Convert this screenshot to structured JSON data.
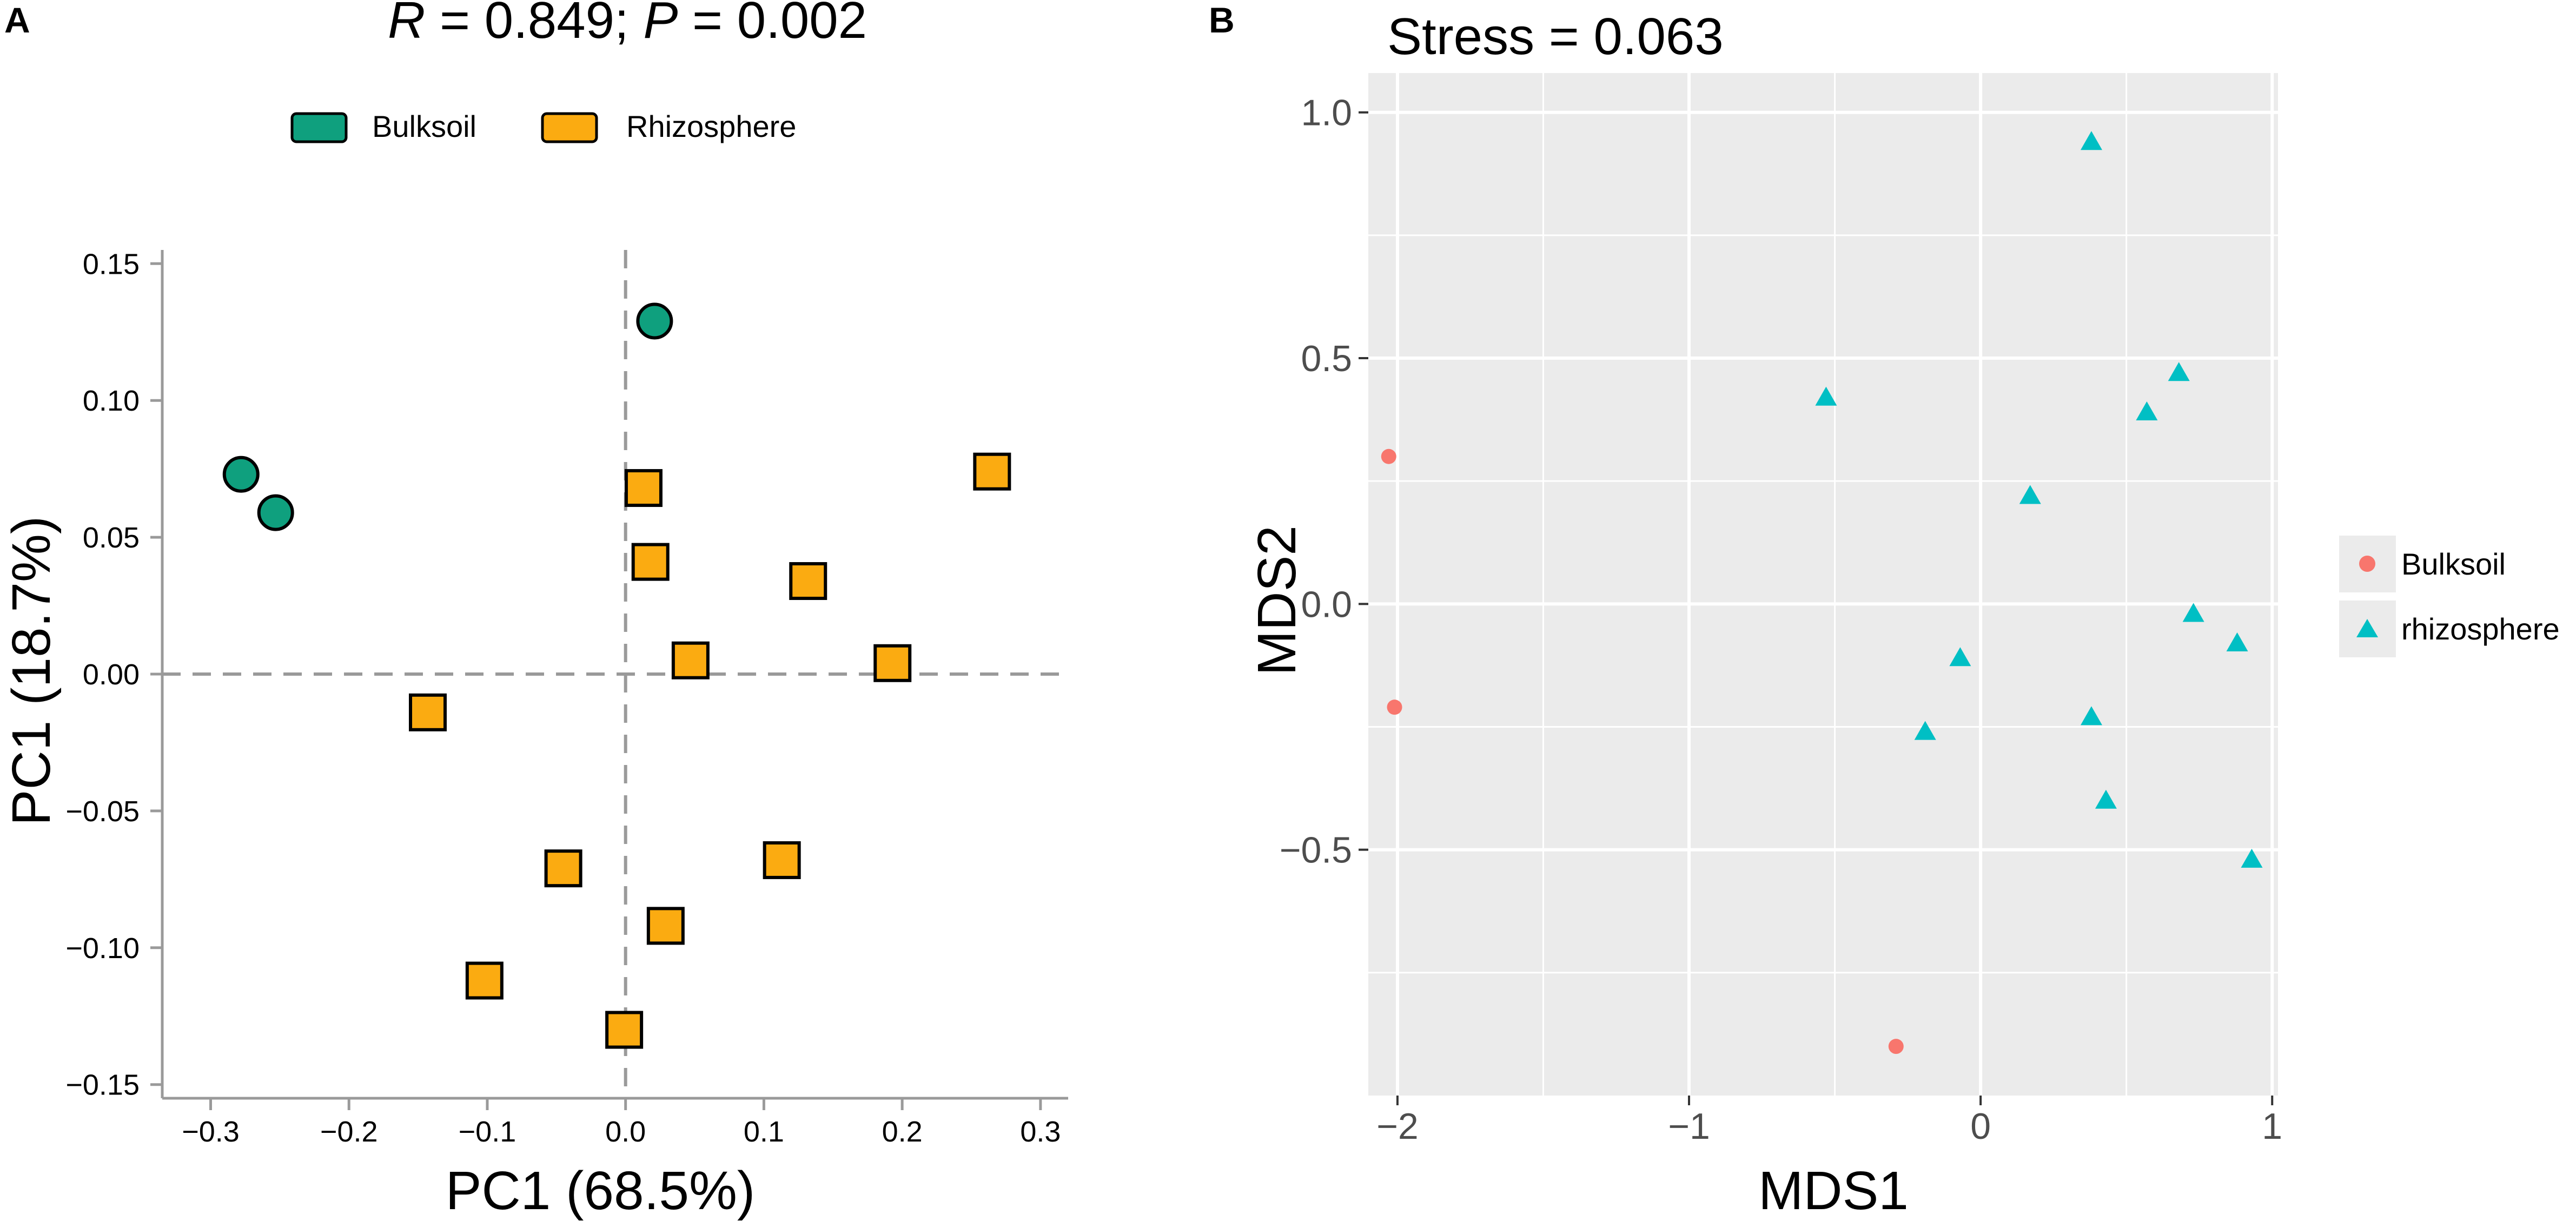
{
  "chart_data": [
    {
      "panel_label": "A",
      "type": "scatter",
      "title_parts": {
        "r_symbol": "R",
        "r_rest": " = 0.849; ",
        "p_symbol": "P",
        "p_rest": " = 0.002"
      },
      "xlabel": "PC1 (68.5%)",
      "ylabel": "PC1 (18.7%)",
      "xlim": [
        -0.335,
        0.32
      ],
      "ylim": [
        -0.155,
        0.155
      ],
      "xticks": [
        -0.3,
        -0.2,
        -0.1,
        0.0,
        0.1,
        0.2,
        0.3
      ],
      "xtick_labels": [
        "−0.3",
        "−0.2",
        "−0.1",
        "0.0",
        "0.1",
        "0.2",
        "0.3"
      ],
      "yticks": [
        -0.15,
        -0.1,
        -0.05,
        0.0,
        0.05,
        0.1,
        0.15
      ],
      "ytick_labels": [
        "−0.15",
        "−0.10",
        "−0.05",
        "0.00",
        "0.05",
        "0.10",
        "0.15"
      ],
      "reference_lines": {
        "x": 0,
        "y": 0
      },
      "legend_position": "top",
      "series": [
        {
          "name": "Bulksoil",
          "marker": "circle",
          "color": "#0fa07e",
          "x": [
            -0.278,
            -0.253,
            0.021
          ],
          "y": [
            0.073,
            0.059,
            0.129
          ]
        },
        {
          "name": "Rhizosphere",
          "marker": "square",
          "color": "#fbab11",
          "x": [
            0.013,
            0.018,
            0.132,
            0.265,
            0.047,
            0.193,
            -0.143,
            -0.045,
            0.113,
            0.029,
            -0.102,
            -0.001
          ],
          "y": [
            0.068,
            0.041,
            0.034,
            0.074,
            0.005,
            0.004,
            -0.014,
            -0.071,
            -0.068,
            -0.092,
            -0.112,
            -0.13
          ]
        }
      ]
    },
    {
      "panel_label": "B",
      "type": "scatter",
      "title": "Stress = 0.063",
      "xlabel": "MDS1",
      "ylabel": "MDS2",
      "xlim": [
        -2.1,
        1.02
      ],
      "ylim": [
        -1.0,
        1.08
      ],
      "xticks": [
        -2,
        -1,
        0,
        1
      ],
      "xtick_labels": [
        "−2",
        "−1",
        "0",
        "1"
      ],
      "x_minor_gridlines": [
        -1.5,
        -0.5,
        0.5
      ],
      "yticks": [
        -0.5,
        0.0,
        0.5,
        1.0
      ],
      "ytick_labels": [
        "−0.5",
        "0.0",
        "0.5",
        "1.0"
      ],
      "y_minor_gridlines": [
        -0.75,
        -0.25,
        0.25,
        0.75
      ],
      "grid": true,
      "background_color": "#ebebeb",
      "legend_position": "right",
      "series": [
        {
          "name": "Bulksoil",
          "marker": "circle",
          "color": "#f8766d",
          "x": [
            -2.03,
            -2.01,
            -0.29
          ],
          "y": [
            0.3,
            -0.21,
            -0.9
          ]
        },
        {
          "name": "rhizosphere",
          "marker": "triangle",
          "color": "#00bfc4",
          "x": [
            0.38,
            -0.53,
            0.68,
            0.57,
            0.17,
            0.73,
            0.88,
            -0.07,
            0.38,
            -0.19,
            0.43,
            0.93
          ],
          "y": [
            0.94,
            0.42,
            0.47,
            0.39,
            0.22,
            -0.02,
            -0.08,
            -0.11,
            -0.23,
            -0.26,
            -0.4,
            -0.52
          ]
        }
      ]
    }
  ]
}
